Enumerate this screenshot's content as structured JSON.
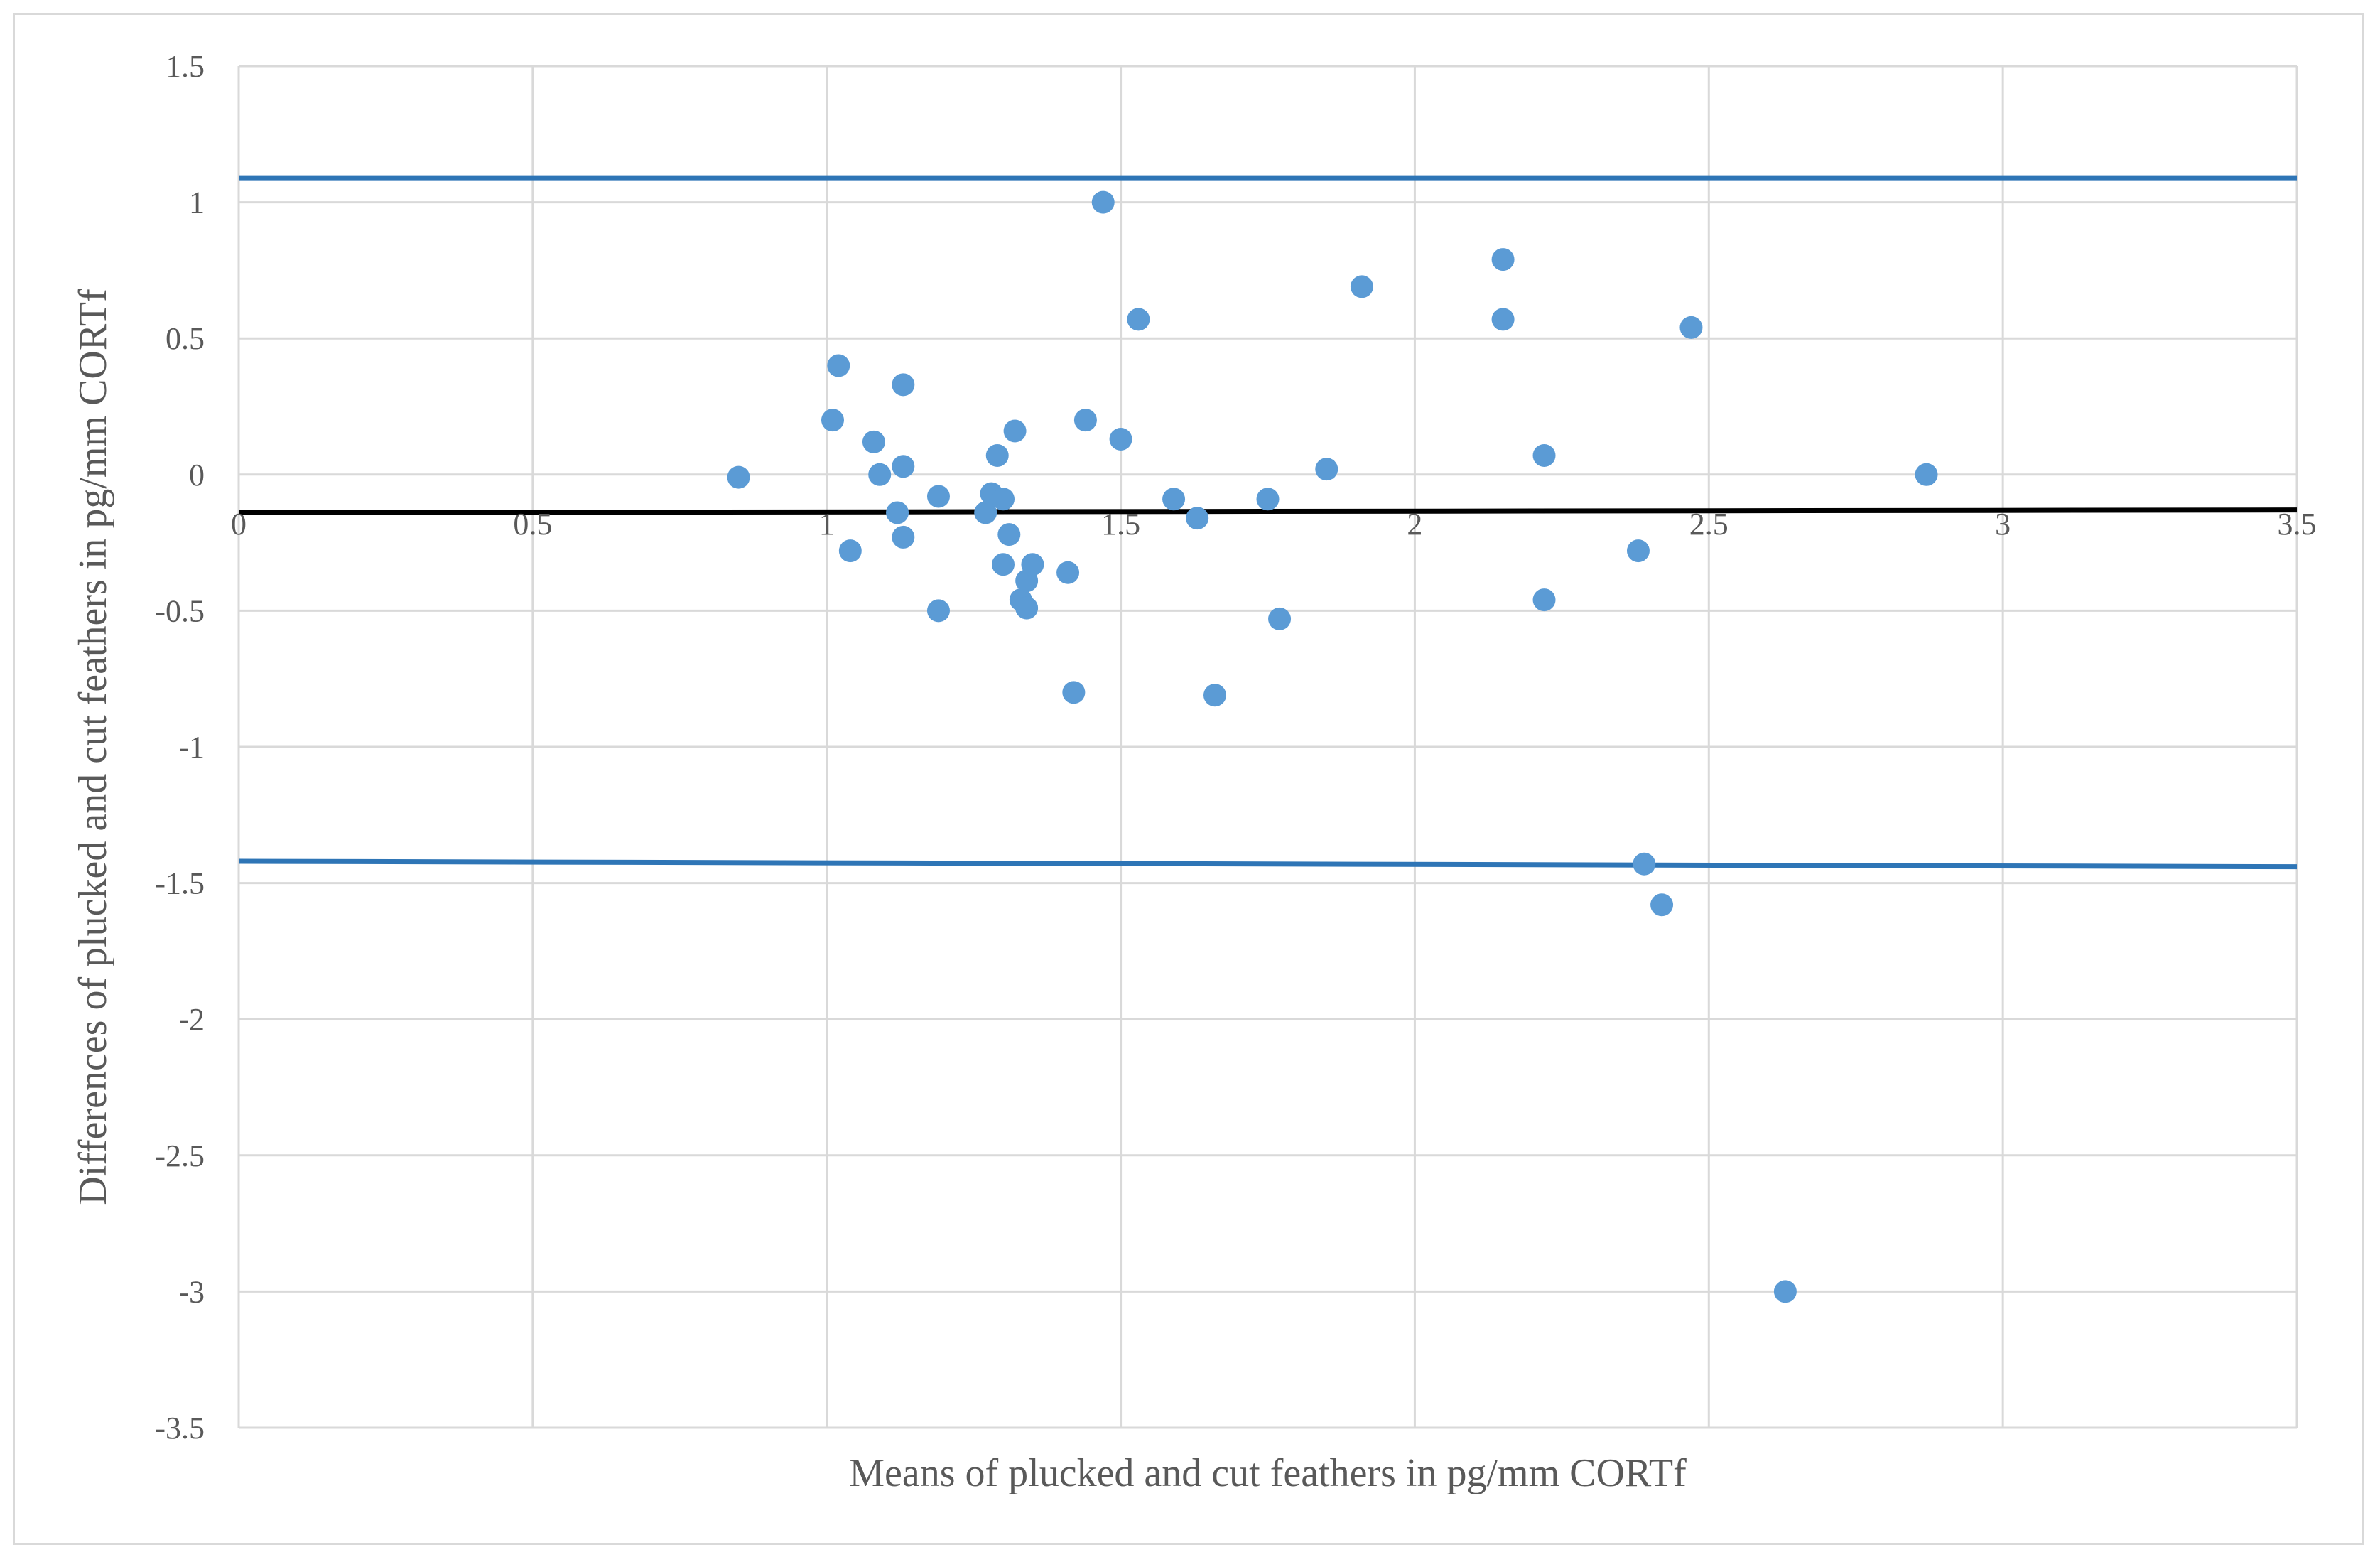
{
  "chart_data": {
    "type": "scatter",
    "title": "",
    "xlabel": "Means of plucked and cut feathers in pg/mm CORTf",
    "ylabel": "Differences of plucked and cut feathers in pg/mm CORTf",
    "xlim": [
      0,
      3.5
    ],
    "ylim": [
      -3.5,
      1.5
    ],
    "xticks": [
      0,
      0.5,
      1,
      1.5,
      2,
      2.5,
      3,
      3.5
    ],
    "xtick_labels": [
      "0",
      "0.5",
      "1",
      "1.5",
      "2",
      "2.5",
      "3",
      "3.5"
    ],
    "yticks": [
      1.5,
      1,
      0.5,
      0,
      -0.5,
      -1,
      -1.5,
      -2,
      -2.5,
      -3,
      -3.5
    ],
    "ytick_labels": [
      "1.5",
      "1",
      "0.5",
      "0",
      "-0.5",
      "-1",
      "-1.5",
      "-2",
      "-2.5",
      "-3",
      "-3.5"
    ],
    "grid": true,
    "legend": "none",
    "colors": {
      "points": "#5b9bd5",
      "limits": "#2e75b6",
      "mean": "#000000",
      "grid": "#d9d9d9"
    },
    "series": [
      {
        "x": [
          0.85,
          1.01,
          1.02,
          1.04,
          1.08,
          1.09,
          1.12,
          1.13,
          1.13,
          1.13,
          1.19,
          1.19,
          1.27,
          1.28,
          1.29,
          1.3,
          1.3,
          1.31,
          1.32,
          1.33,
          1.34,
          1.34,
          1.35,
          1.41,
          1.42,
          1.44,
          1.47,
          1.5,
          1.53,
          1.59,
          1.63,
          1.66,
          1.75,
          1.77,
          1.85,
          1.91,
          2.15,
          2.15,
          2.22,
          2.22,
          2.38,
          2.39,
          2.42,
          2.47,
          2.63,
          2.87
        ],
        "y": [
          -0.01,
          0.2,
          0.4,
          -0.28,
          0.12,
          0.0,
          -0.14,
          0.03,
          -0.23,
          0.33,
          -0.08,
          -0.5,
          -0.14,
          -0.07,
          0.07,
          -0.33,
          -0.09,
          -0.22,
          0.16,
          -0.46,
          -0.49,
          -0.39,
          -0.33,
          -0.36,
          -0.8,
          0.2,
          1.0,
          0.13,
          0.57,
          -0.09,
          -0.16,
          -0.81,
          -0.09,
          -0.53,
          0.02,
          0.69,
          0.57,
          0.79,
          -0.46,
          0.07,
          -0.28,
          -1.43,
          -1.58,
          0.54,
          -3.0,
          0.0
        ]
      }
    ],
    "reference_lines": [
      {
        "y_start": 1.09,
        "y_end": 1.09
      },
      {
        "y_start": -0.14,
        "y_end": -0.13
      },
      {
        "y_start": -1.42,
        "y_end": -1.44
      }
    ]
  }
}
